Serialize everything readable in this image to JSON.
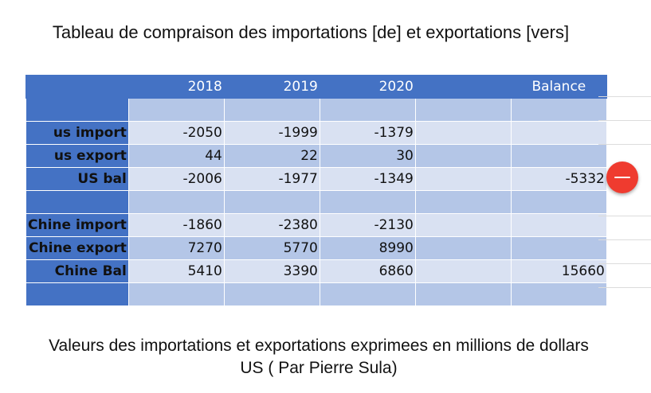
{
  "title": "Tableau de compraison des importations [de]  et exportations [vers]",
  "columns": [
    "",
    "2018",
    "2019",
    "2020",
    "",
    "Balance"
  ],
  "rows": [
    {
      "label": "",
      "values": [
        "",
        "",
        "",
        "",
        ""
      ],
      "shade": "dark"
    },
    {
      "label": "us import",
      "values": [
        "-2050",
        "-1999",
        "-1379",
        "",
        ""
      ],
      "shade": "light"
    },
    {
      "label": "us export",
      "values": [
        "44",
        "22",
        "30",
        "",
        ""
      ],
      "shade": "dark"
    },
    {
      "label": "US bal",
      "values": [
        "-2006",
        "-1977",
        "-1349",
        "",
        "-5332"
      ],
      "shade": "light"
    },
    {
      "label": "",
      "values": [
        "",
        "",
        "",
        "",
        ""
      ],
      "shade": "dark"
    },
    {
      "label": "Chine import",
      "values": [
        "-1860",
        "-2380",
        "-2130",
        "",
        ""
      ],
      "shade": "light"
    },
    {
      "label": "Chine export",
      "values": [
        "7270",
        "5770",
        "8990",
        "",
        ""
      ],
      "shade": "dark"
    },
    {
      "label": "Chine Bal",
      "values": [
        "5410",
        "3390",
        "6860",
        "",
        "15660"
      ],
      "shade": "light"
    },
    {
      "label": "",
      "values": [
        "",
        "",
        "",
        "",
        ""
      ],
      "shade": "dark"
    }
  ],
  "footer": "Valeurs des importations et exportations  exprimees en millions de dollars US ( Par Pierre Sula)",
  "icons": {
    "remove": "minus-circle-icon"
  },
  "colors": {
    "header": "#4472c4",
    "dark": "#b4c6e7",
    "light": "#d9e1f2",
    "remove": "#ef3b2f"
  }
}
